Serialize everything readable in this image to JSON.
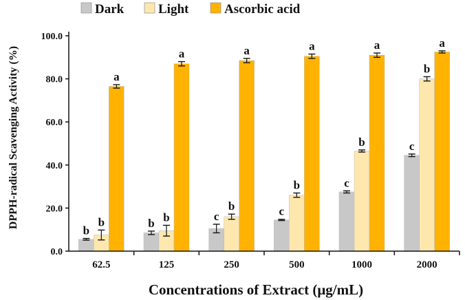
{
  "chart_data": {
    "type": "bar",
    "title": "",
    "xlabel": "Concentrations of Extract (μg/mL)",
    "ylabel": "DPPH-radical Scavenging Activity (%)",
    "ylim": [
      0,
      100
    ],
    "yticks": [
      "0.0",
      "20.0",
      "40.0",
      "60.0",
      "80.0",
      "100.0"
    ],
    "categories": [
      "62.5",
      "125",
      "250",
      "500",
      "1000",
      "2000"
    ],
    "legend_position": "top",
    "series": [
      {
        "name": "Dark",
        "color": "#c8c8c8",
        "values": [
          5.5,
          8.5,
          10.5,
          14.5,
          27.5,
          44.5
        ],
        "errors": [
          0.4,
          0.8,
          2.0,
          0.3,
          0.5,
          0.6
        ],
        "letters": [
          "b",
          "b",
          "c",
          "c",
          "c",
          "c"
        ]
      },
      {
        "name": "Light",
        "color": "#fde7ad",
        "values": [
          7.5,
          9.5,
          16.0,
          26.0,
          46.5,
          80.0
        ],
        "errors": [
          2.3,
          2.5,
          1.2,
          1.0,
          0.5,
          1.0
        ],
        "letters": [
          "b",
          "b",
          "b",
          "b",
          "b",
          "b"
        ]
      },
      {
        "name": "Ascorbic acid",
        "color": "#ffb300",
        "values": [
          76.5,
          87.0,
          88.5,
          90.5,
          91.0,
          92.5
        ],
        "errors": [
          0.8,
          1.0,
          1.0,
          1.0,
          1.0,
          0.5
        ],
        "letters": [
          "a",
          "a",
          "a",
          "a",
          "a",
          "a"
        ]
      }
    ]
  }
}
